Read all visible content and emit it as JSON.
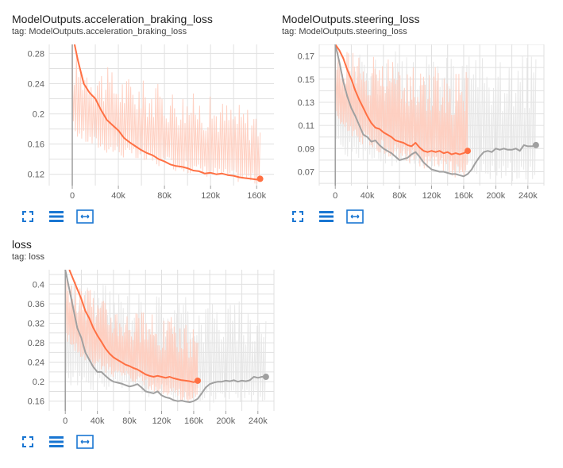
{
  "colors": {
    "run_orange": "#ff7043",
    "run_orange_light": "#ffccbc",
    "run_gray": "#a0a0a0",
    "run_gray_light": "#e6e6e6",
    "grid": "#e0e0e0",
    "axis": "#9e9e9e",
    "icon_blue": "#1976d2"
  },
  "toolbar_icons": [
    "fullscreen-icon",
    "list-icon",
    "fit-domain-icon"
  ],
  "cards": [
    {
      "title": "ModelOutputs.acceleration_braking_loss",
      "tag": "tag: ModelOutputs.acceleration_braking_loss"
    },
    {
      "title": "ModelOutputs.steering_loss",
      "tag": "tag: ModelOutputs.steering_loss"
    },
    {
      "title": "loss",
      "tag": "tag: loss"
    }
  ],
  "chart_data": [
    {
      "type": "line",
      "title": "ModelOutputs.acceleration_braking_loss",
      "xlim": [
        -20000,
        175000
      ],
      "ylim": [
        0.105,
        0.292
      ],
      "x_ticks": [
        0,
        40000,
        80000,
        120000,
        160000
      ],
      "x_tick_labels": [
        "0",
        "40k",
        "80k",
        "120k",
        "160k"
      ],
      "y_ticks": [
        0.12,
        0.16,
        0.2,
        0.24,
        0.28
      ],
      "y_tick_labels": [
        "0.12",
        "0.16",
        "0.2",
        "0.24",
        "0.28"
      ],
      "series": [
        {
          "color": "orange",
          "smoothed": [
            [
              2000,
              0.292
            ],
            [
              5000,
              0.27
            ],
            [
              10000,
              0.24
            ],
            [
              15000,
              0.228
            ],
            [
              20000,
              0.22
            ],
            [
              25000,
              0.205
            ],
            [
              30000,
              0.192
            ],
            [
              35000,
              0.185
            ],
            [
              40000,
              0.178
            ],
            [
              45000,
              0.168
            ],
            [
              50000,
              0.162
            ],
            [
              55000,
              0.157
            ],
            [
              60000,
              0.152
            ],
            [
              65000,
              0.148
            ],
            [
              70000,
              0.145
            ],
            [
              75000,
              0.14
            ],
            [
              80000,
              0.137
            ],
            [
              85000,
              0.133
            ],
            [
              90000,
              0.131
            ],
            [
              95000,
              0.13
            ],
            [
              100000,
              0.128
            ],
            [
              105000,
              0.125
            ],
            [
              110000,
              0.124
            ],
            [
              115000,
              0.121
            ],
            [
              120000,
              0.122
            ],
            [
              125000,
              0.12
            ],
            [
              130000,
              0.121
            ],
            [
              135000,
              0.119
            ],
            [
              140000,
              0.118
            ],
            [
              145000,
              0.116
            ],
            [
              150000,
              0.115
            ],
            [
              155000,
              0.114
            ],
            [
              160000,
              0.113
            ],
            [
              163000,
              0.114
            ]
          ],
          "raw_band": {
            "x": [
              0,
              163000
            ],
            "upper_start": 0.292,
            "upper_end": 0.21,
            "lower_start": 0.18,
            "lower_end": 0.105
          }
        }
      ]
    },
    {
      "type": "line",
      "title": "ModelOutputs.steering_loss",
      "xlim": [
        -20000,
        260000
      ],
      "ylim": [
        0.058,
        0.18
      ],
      "x_ticks": [
        0,
        40000,
        80000,
        120000,
        160000,
        200000,
        240000
      ],
      "x_tick_labels": [
        "0",
        "40k",
        "80k",
        "120k",
        "160k",
        "200k",
        "240k"
      ],
      "y_ticks": [
        0.07,
        0.09,
        0.11,
        0.13,
        0.15,
        0.17
      ],
      "y_tick_labels": [
        "0.07",
        "0.09",
        "0.11",
        "0.13",
        "0.15",
        "0.17"
      ],
      "series": [
        {
          "color": "orange",
          "smoothed": [
            [
              0,
              0.18
            ],
            [
              5000,
              0.175
            ],
            [
              10000,
              0.168
            ],
            [
              15000,
              0.158
            ],
            [
              20000,
              0.15
            ],
            [
              25000,
              0.14
            ],
            [
              30000,
              0.132
            ],
            [
              35000,
              0.125
            ],
            [
              40000,
              0.118
            ],
            [
              45000,
              0.112
            ],
            [
              50000,
              0.108
            ],
            [
              55000,
              0.107
            ],
            [
              60000,
              0.104
            ],
            [
              65000,
              0.102
            ],
            [
              70000,
              0.1
            ],
            [
              75000,
              0.097
            ],
            [
              80000,
              0.096
            ],
            [
              85000,
              0.095
            ],
            [
              90000,
              0.093
            ],
            [
              95000,
              0.092
            ],
            [
              100000,
              0.095
            ],
            [
              105000,
              0.091
            ],
            [
              110000,
              0.088
            ],
            [
              115000,
              0.087
            ],
            [
              120000,
              0.088
            ],
            [
              125000,
              0.087
            ],
            [
              130000,
              0.088
            ],
            [
              135000,
              0.086
            ],
            [
              140000,
              0.087
            ],
            [
              145000,
              0.085
            ],
            [
              150000,
              0.086
            ],
            [
              155000,
              0.085
            ],
            [
              160000,
              0.086
            ],
            [
              165000,
              0.088
            ]
          ],
          "raw_band": {
            "x": [
              0,
              165000
            ],
            "upper_start": 0.18,
            "upper_end": 0.16,
            "lower_start": 0.12,
            "lower_end": 0.062
          }
        },
        {
          "color": "gray",
          "smoothed": [
            [
              0,
              0.18
            ],
            [
              5000,
              0.165
            ],
            [
              10000,
              0.148
            ],
            [
              15000,
              0.135
            ],
            [
              20000,
              0.125
            ],
            [
              25000,
              0.118
            ],
            [
              30000,
              0.11
            ],
            [
              35000,
              0.102
            ],
            [
              40000,
              0.1
            ],
            [
              45000,
              0.096
            ],
            [
              50000,
              0.097
            ],
            [
              55000,
              0.093
            ],
            [
              60000,
              0.09
            ],
            [
              65000,
              0.088
            ],
            [
              70000,
              0.086
            ],
            [
              75000,
              0.083
            ],
            [
              80000,
              0.08
            ],
            [
              85000,
              0.081
            ],
            [
              90000,
              0.082
            ],
            [
              95000,
              0.085
            ],
            [
              100000,
              0.087
            ],
            [
              105000,
              0.083
            ],
            [
              110000,
              0.078
            ],
            [
              115000,
              0.075
            ],
            [
              120000,
              0.072
            ],
            [
              125000,
              0.071
            ],
            [
              130000,
              0.07
            ],
            [
              135000,
              0.07
            ],
            [
              140000,
              0.069
            ],
            [
              145000,
              0.068
            ],
            [
              150000,
              0.068
            ],
            [
              155000,
              0.067
            ],
            [
              160000,
              0.066
            ],
            [
              165000,
              0.068
            ],
            [
              170000,
              0.072
            ],
            [
              175000,
              0.078
            ],
            [
              180000,
              0.083
            ],
            [
              185000,
              0.087
            ],
            [
              190000,
              0.088
            ],
            [
              195000,
              0.087
            ],
            [
              200000,
              0.09
            ],
            [
              205000,
              0.089
            ],
            [
              210000,
              0.09
            ],
            [
              215000,
              0.089
            ],
            [
              220000,
              0.089
            ],
            [
              225000,
              0.09
            ],
            [
              230000,
              0.088
            ],
            [
              235000,
              0.093
            ],
            [
              240000,
              0.092
            ],
            [
              245000,
              0.092
            ],
            [
              250000,
              0.093
            ]
          ],
          "raw_band": {
            "x": [
              0,
              250000
            ],
            "upper_start": 0.18,
            "upper_end": 0.17,
            "lower_start": 0.09,
            "lower_end": 0.06
          }
        }
      ]
    },
    {
      "type": "line",
      "title": "loss",
      "xlim": [
        -20000,
        260000
      ],
      "ylim": [
        0.14,
        0.43
      ],
      "x_ticks": [
        0,
        40000,
        80000,
        120000,
        160000,
        200000,
        240000
      ],
      "x_tick_labels": [
        "0",
        "40k",
        "80k",
        "120k",
        "160k",
        "200k",
        "240k"
      ],
      "y_ticks": [
        0.16,
        0.2,
        0.24,
        0.28,
        0.32,
        0.36,
        0.4
      ],
      "y_tick_labels": [
        "0.16",
        "0.2",
        "0.24",
        "0.28",
        "0.32",
        "0.36",
        "0.4"
      ],
      "series": [
        {
          "color": "orange",
          "smoothed": [
            [
              5000,
              0.43
            ],
            [
              10000,
              0.41
            ],
            [
              15000,
              0.39
            ],
            [
              20000,
              0.37
            ],
            [
              25000,
              0.345
            ],
            [
              30000,
              0.33
            ],
            [
              35000,
              0.31
            ],
            [
              40000,
              0.295
            ],
            [
              45000,
              0.282
            ],
            [
              50000,
              0.268
            ],
            [
              55000,
              0.258
            ],
            [
              60000,
              0.25
            ],
            [
              65000,
              0.245
            ],
            [
              70000,
              0.24
            ],
            [
              75000,
              0.235
            ],
            [
              80000,
              0.232
            ],
            [
              85000,
              0.228
            ],
            [
              90000,
              0.225
            ],
            [
              95000,
              0.22
            ],
            [
              100000,
              0.215
            ],
            [
              105000,
              0.212
            ],
            [
              110000,
              0.21
            ],
            [
              115000,
              0.212
            ],
            [
              120000,
              0.21
            ],
            [
              125000,
              0.208
            ],
            [
              130000,
              0.21
            ],
            [
              135000,
              0.207
            ],
            [
              140000,
              0.205
            ],
            [
              145000,
              0.203
            ],
            [
              150000,
              0.202
            ],
            [
              155000,
              0.201
            ],
            [
              160000,
              0.199
            ],
            [
              165000,
              0.202
            ]
          ],
          "raw_band": {
            "x": [
              0,
              165000
            ],
            "upper_start": 0.43,
            "upper_end": 0.32,
            "lower_start": 0.3,
            "lower_end": 0.15
          }
        },
        {
          "color": "gray",
          "smoothed": [
            [
              0,
              0.43
            ],
            [
              5000,
              0.39
            ],
            [
              10000,
              0.35
            ],
            [
              15000,
              0.31
            ],
            [
              20000,
              0.29
            ],
            [
              25000,
              0.26
            ],
            [
              30000,
              0.245
            ],
            [
              35000,
              0.23
            ],
            [
              40000,
              0.22
            ],
            [
              45000,
              0.22
            ],
            [
              50000,
              0.212
            ],
            [
              55000,
              0.205
            ],
            [
              60000,
              0.2
            ],
            [
              65000,
              0.198
            ],
            [
              70000,
              0.196
            ],
            [
              75000,
              0.193
            ],
            [
              80000,
              0.19
            ],
            [
              85000,
              0.192
            ],
            [
              90000,
              0.195
            ],
            [
              95000,
              0.188
            ],
            [
              100000,
              0.18
            ],
            [
              105000,
              0.178
            ],
            [
              110000,
              0.176
            ],
            [
              115000,
              0.18
            ],
            [
              120000,
              0.172
            ],
            [
              125000,
              0.168
            ],
            [
              130000,
              0.166
            ],
            [
              135000,
              0.162
            ],
            [
              140000,
              0.16
            ],
            [
              145000,
              0.161
            ],
            [
              150000,
              0.159
            ],
            [
              155000,
              0.158
            ],
            [
              160000,
              0.16
            ],
            [
              165000,
              0.165
            ],
            [
              170000,
              0.176
            ],
            [
              175000,
              0.188
            ],
            [
              180000,
              0.195
            ],
            [
              185000,
              0.198
            ],
            [
              190000,
              0.2
            ],
            [
              195000,
              0.2
            ],
            [
              200000,
              0.202
            ],
            [
              205000,
              0.201
            ],
            [
              210000,
              0.203
            ],
            [
              215000,
              0.2
            ],
            [
              220000,
              0.202
            ],
            [
              225000,
              0.201
            ],
            [
              230000,
              0.203
            ],
            [
              235000,
              0.21
            ],
            [
              240000,
              0.208
            ],
            [
              245000,
              0.21
            ],
            [
              250000,
              0.21
            ]
          ],
          "raw_band": {
            "x": [
              0,
              250000
            ],
            "upper_start": 0.43,
            "upper_end": 0.36,
            "lower_start": 0.2,
            "lower_end": 0.15
          }
        }
      ]
    }
  ]
}
